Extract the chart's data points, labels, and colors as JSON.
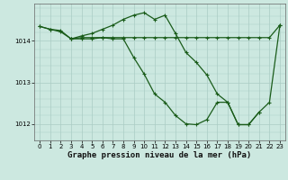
{
  "xlabel": "Graphe pression niveau de la mer (hPa)",
  "background_color": "#cce8e0",
  "grid_color": "#aaccc4",
  "line_color": "#1a5c1a",
  "ylim": [
    1011.6,
    1014.9
  ],
  "xlim": [
    -0.5,
    23.5
  ],
  "yticks": [
    1012,
    1013,
    1014
  ],
  "xticks": [
    0,
    1,
    2,
    3,
    4,
    5,
    6,
    7,
    8,
    9,
    10,
    11,
    12,
    13,
    14,
    15,
    16,
    17,
    18,
    19,
    20,
    21,
    22,
    23
  ],
  "line1_x": [
    0,
    1,
    2,
    3,
    4,
    5,
    6,
    7,
    8,
    9,
    10,
    11,
    12,
    13,
    14,
    15,
    16,
    17,
    18,
    19,
    20,
    21,
    22,
    23
  ],
  "line1_y": [
    1014.35,
    1014.28,
    1014.25,
    1014.05,
    1014.08,
    1014.08,
    1014.08,
    1014.08,
    1014.08,
    1014.08,
    1014.08,
    1014.08,
    1014.08,
    1014.08,
    1014.08,
    1014.08,
    1014.08,
    1014.08,
    1014.08,
    1014.08,
    1014.08,
    1014.08,
    1014.08,
    1014.38
  ],
  "line2_x": [
    0,
    1,
    2,
    3,
    4,
    5,
    6,
    7,
    8,
    9,
    10,
    11,
    12,
    13,
    14,
    15,
    16,
    17,
    18,
    19,
    20,
    21,
    22,
    23
  ],
  "line2_y": [
    1014.35,
    1014.28,
    1014.22,
    1014.05,
    1014.12,
    1014.18,
    1014.28,
    1014.38,
    1014.52,
    1014.62,
    1014.68,
    1014.52,
    1014.62,
    1014.18,
    1013.72,
    1013.48,
    1013.18,
    1012.72,
    1012.52,
    1011.98,
    1011.98,
    1012.28,
    1012.52,
    1014.38
  ],
  "line3_x": [
    3,
    4,
    5,
    6,
    7,
    8,
    9,
    10,
    11,
    12,
    13,
    14,
    15,
    16,
    17,
    18,
    19,
    20,
    21
  ],
  "line3_y": [
    1014.05,
    1014.05,
    1014.05,
    1014.08,
    1014.05,
    1014.05,
    1013.6,
    1013.2,
    1012.72,
    1012.52,
    1012.2,
    1012.0,
    1011.98,
    1012.1,
    1012.52,
    1012.52,
    1011.98,
    1011.98,
    1012.28
  ],
  "marker": "+",
  "markersize": 3,
  "linewidth": 0.9,
  "tick_fontsize": 5,
  "label_fontsize": 6.5
}
